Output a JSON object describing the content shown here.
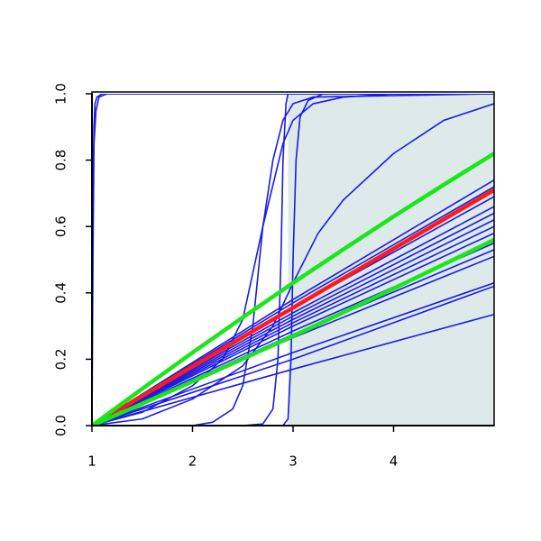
{
  "chart_data": {
    "type": "line",
    "xlim": [
      1,
      5
    ],
    "ylim": [
      0,
      1
    ],
    "xticks": [
      1,
      2,
      3,
      4
    ],
    "yticks": [
      {
        "value": 0,
        "label": "0.0"
      },
      0.2,
      0.4,
      0.6,
      0.8,
      {
        "value": 1,
        "label": "1.0"
      }
    ],
    "shaded_region": {
      "xmin": 2.95,
      "xmax": 5,
      "color": "#deeaea"
    },
    "series": [
      {
        "color": "#1a1ae6",
        "line_width": 1.6,
        "x": [
          1,
          1.01,
          1.02,
          1.03,
          1.05,
          1.1,
          1.5,
          5
        ],
        "values": [
          0.32,
          0.7,
          0.9,
          0.97,
          0.99,
          1,
          1,
          1
        ]
      },
      {
        "color": "#1a1ae6",
        "line_width": 1.6,
        "x": [
          1,
          1.01,
          1.02,
          1.04,
          1.07,
          1.15,
          5
        ],
        "values": [
          0,
          0.5,
          0.85,
          0.95,
          0.99,
          1,
          1
        ]
      },
      {
        "color": "#1a1ae6",
        "line_width": 1.6,
        "x": [
          1,
          2.5,
          2.7,
          2.8,
          2.85,
          2.88,
          2.9,
          2.93,
          2.95,
          5
        ],
        "values": [
          0,
          0,
          0.005,
          0.05,
          0.2,
          0.5,
          0.8,
          0.97,
          1,
          1
        ]
      },
      {
        "color": "#1a1ae6",
        "line_width": 1.6,
        "x": [
          1,
          2.9,
          2.95,
          2.98,
          3.0,
          3.03,
          3.07,
          3.15,
          3.3,
          5
        ],
        "values": [
          0,
          0,
          0.02,
          0.2,
          0.5,
          0.8,
          0.93,
          0.98,
          1,
          1
        ]
      },
      {
        "color": "#1a1ae6",
        "line_width": 1.6,
        "x": [
          1,
          2,
          2.2,
          2.4,
          2.5,
          2.6,
          2.7,
          2.8,
          2.9,
          3,
          3.2,
          5
        ],
        "values": [
          0,
          0,
          0.01,
          0.05,
          0.12,
          0.3,
          0.6,
          0.8,
          0.92,
          0.97,
          0.99,
          1
        ]
      },
      {
        "color": "#1a1ae6",
        "line_width": 1.6,
        "x": [
          1,
          1.5,
          2,
          2.5,
          2.8,
          3,
          3.25,
          3.5,
          4,
          4.5,
          5
        ],
        "values": [
          0,
          0.02,
          0.08,
          0.18,
          0.3,
          0.43,
          0.58,
          0.68,
          0.82,
          0.92,
          0.97
        ]
      },
      {
        "color": "#1a1ae6",
        "line_width": 1.6,
        "x": [
          1,
          1.5,
          2,
          2.3,
          2.5,
          2.7,
          2.9,
          3,
          3.2,
          3.5,
          4,
          5
        ],
        "values": [
          0,
          0.04,
          0.12,
          0.2,
          0.32,
          0.6,
          0.85,
          0.92,
          0.97,
          0.99,
          1,
          1
        ]
      },
      {
        "color": "#1a1ae6",
        "line_width": 1.6,
        "x": [
          1,
          3,
          5
        ],
        "values": [
          0,
          0.38,
          0.74
        ]
      },
      {
        "color": "#1a1ae6",
        "line_width": 1.6,
        "x": [
          1,
          3,
          5
        ],
        "values": [
          0,
          0.37,
          0.72
        ]
      },
      {
        "color": "#1a1ae6",
        "line_width": 1.6,
        "x": [
          1,
          3,
          5
        ],
        "values": [
          0,
          0.355,
          0.69
        ]
      },
      {
        "color": "#1a1ae6",
        "line_width": 1.6,
        "x": [
          1,
          3,
          5
        ],
        "values": [
          0,
          0.34,
          0.66
        ]
      },
      {
        "color": "#1a1ae6",
        "line_width": 1.6,
        "x": [
          1,
          3,
          5
        ],
        "values": [
          0,
          0.33,
          0.64
        ]
      },
      {
        "color": "#1a1ae6",
        "line_width": 1.6,
        "x": [
          1,
          3,
          5
        ],
        "values": [
          0,
          0.32,
          0.62
        ]
      },
      {
        "color": "#1a1ae6",
        "line_width": 1.6,
        "x": [
          1,
          3,
          5
        ],
        "values": [
          0,
          0.31,
          0.6
        ]
      },
      {
        "color": "#1a1ae6",
        "line_width": 1.6,
        "x": [
          1,
          3,
          5
        ],
        "values": [
          0,
          0.3,
          0.58
        ]
      },
      {
        "color": "#1a1ae6",
        "line_width": 1.6,
        "x": [
          1,
          3,
          5
        ],
        "values": [
          0,
          0.285,
          0.55
        ]
      },
      {
        "color": "#1a1ae6",
        "line_width": 1.6,
        "x": [
          1,
          3,
          5
        ],
        "values": [
          0,
          0.275,
          0.53
        ]
      },
      {
        "color": "#1a1ae6",
        "line_width": 1.6,
        "x": [
          1,
          3,
          5
        ],
        "values": [
          0,
          0.265,
          0.51
        ]
      },
      {
        "color": "#1a1ae6",
        "line_width": 1.6,
        "x": [
          1,
          3,
          5
        ],
        "values": [
          0,
          0.22,
          0.43
        ]
      },
      {
        "color": "#1a1ae6",
        "line_width": 1.6,
        "x": [
          1,
          3,
          5
        ],
        "values": [
          0,
          0.2,
          0.42
        ]
      },
      {
        "color": "#1a1ae6",
        "line_width": 1.6,
        "x": [
          1,
          3,
          5
        ],
        "values": [
          0,
          0.17,
          0.335
        ]
      },
      {
        "color": "#ff1a1a",
        "line_width": 4.5,
        "x": [
          1,
          2,
          3,
          4,
          5
        ],
        "values": [
          0,
          0.178,
          0.355,
          0.533,
          0.71
        ]
      },
      {
        "color": "#1ae61a",
        "line_width": 4.5,
        "x": [
          1,
          1.5,
          2,
          2.5,
          3,
          3.5,
          4,
          4.5,
          5
        ],
        "values": [
          0,
          0.111,
          0.22,
          0.326,
          0.43,
          0.531,
          0.63,
          0.726,
          0.82
        ]
      },
      {
        "color": "#1ae61a",
        "line_width": 4.5,
        "x": [
          1,
          1.5,
          2,
          2.5,
          3,
          3.5,
          4,
          4.5,
          5
        ],
        "values": [
          0,
          0.066,
          0.133,
          0.201,
          0.27,
          0.341,
          0.413,
          0.486,
          0.56
        ]
      }
    ]
  }
}
